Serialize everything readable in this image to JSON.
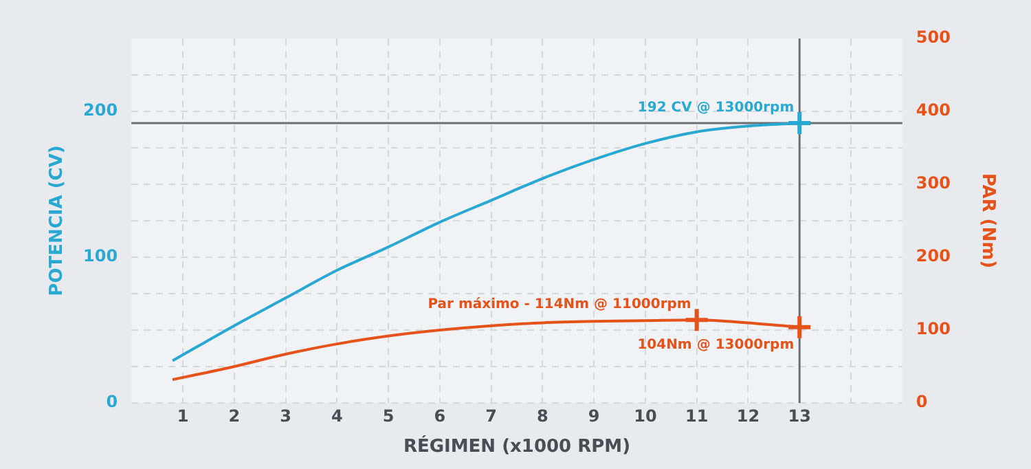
{
  "chart_data": {
    "type": "line",
    "xlabel": "RÉGIMEN (x1000 RPM)",
    "ylabel": "POTENCIA (CV)",
    "y2label": "PAR (Nm)",
    "xlim": [
      0,
      15
    ],
    "xticks": [
      1,
      2,
      3,
      4,
      5,
      6,
      7,
      8,
      9,
      10,
      11,
      12,
      13,
      {
        "value": 14,
        "label": null
      }
    ],
    "ylim": [
      0,
      250
    ],
    "yticks": [
      0,
      {
        "value": 25,
        "label": null
      },
      {
        "value": 50,
        "label": null
      },
      {
        "value": 75,
        "label": null
      },
      100,
      {
        "value": 125,
        "label": null
      },
      {
        "value": 150,
        "label": null
      },
      {
        "value": 175,
        "label": null
      },
      200,
      {
        "value": 225,
        "label": null
      }
    ],
    "y2lim": [
      0,
      500
    ],
    "y2ticks": [
      0,
      100,
      200,
      300,
      400,
      500
    ],
    "grid": true,
    "marker": "none",
    "line_style": "solid",
    "ref_lines": [
      {
        "axis": "y",
        "value": 192,
        "color": "#6b6e73"
      },
      {
        "axis": "x",
        "value": 13,
        "color": "#6b6e73"
      }
    ],
    "series": [
      {
        "color": "#29a9d2",
        "x": [
          0.8,
          2,
          3,
          4,
          5,
          6,
          7,
          8,
          9,
          10,
          11,
          12,
          13
        ],
        "values": [
          29,
          53,
          72,
          91,
          107,
          124,
          139,
          154,
          167,
          178,
          186,
          190,
          192
        ]
      },
      {
        "color": "#e5531a",
        "axis": "y2",
        "x": [
          0.8,
          2,
          3,
          4,
          5,
          6,
          7,
          8,
          9,
          10,
          11,
          12,
          13
        ],
        "values": [
          32,
          50,
          67,
          81,
          92,
          100,
          106,
          110,
          112,
          113,
          114,
          110,
          104
        ]
      },
      {
        "type": "scatter",
        "marker": "cross",
        "color": "#29a9d2",
        "x": [
          13
        ],
        "values": [
          192
        ],
        "value_labels": [
          "192 CV @ 13000rpm"
        ]
      },
      {
        "type": "scatter",
        "marker": "cross",
        "color": "#e5531a",
        "axis": "y2",
        "x": [
          11,
          13
        ],
        "values": [
          114,
          104
        ],
        "value_labels": [
          "Par máximo - 114Nm @ 11000rpm",
          "104Nm @ 13000rpm"
        ]
      }
    ]
  }
}
